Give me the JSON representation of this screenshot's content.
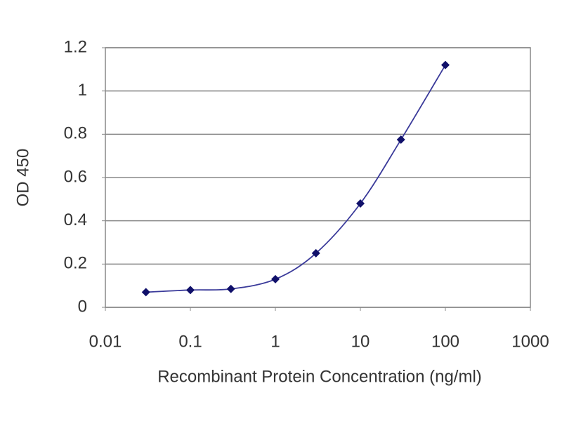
{
  "chart_data": {
    "type": "line",
    "xlabel": "Recombinant Protein Concentration (ng/ml)",
    "ylabel": "OD 450",
    "x": [
      0.03,
      0.1,
      0.3,
      1,
      3,
      10,
      30,
      100
    ],
    "values": [
      0.07,
      0.08,
      0.085,
      0.13,
      0.25,
      0.48,
      0.775,
      1.12
    ],
    "color": "#3a3a9a",
    "marker_color": "#10106a",
    "xscale": "log",
    "xlim": [
      0.01,
      1000
    ],
    "xticks": [
      0.01,
      0.1,
      1,
      10,
      100,
      1000
    ],
    "ylim": [
      0,
      1.2
    ],
    "yticks": [
      0,
      0.2,
      0.4,
      0.6,
      0.8,
      1,
      1.2
    ],
    "grid": true
  }
}
